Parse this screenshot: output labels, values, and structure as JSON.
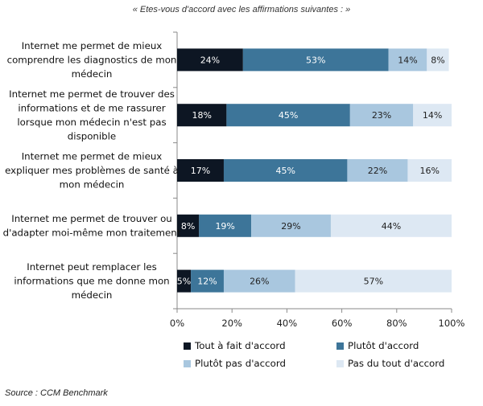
{
  "subtitle": "« Etes-vous d'accord avec les affirmations suivantes : »",
  "source": "Source : CCM Benchmark",
  "chart_data": {
    "type": "bar",
    "orientation": "horizontal",
    "stacked": true,
    "categories": [
      [
        "Internet me permet de mieux",
        "comprendre les diagnostics de mon",
        "médecin"
      ],
      [
        "Internet me permet de trouver des",
        "informations et de me rassurer",
        "lorsque mon médecin n'est pas",
        "disponible"
      ],
      [
        "Internet me permet de mieux",
        "expliquer mes problèmes de santé à",
        "mon médecin"
      ],
      [
        "Internet me permet de trouver ou",
        "d'adapter moi-même mon traitement"
      ],
      [
        "Internet peut remplacer les",
        "informations que me donne mon",
        "médecin"
      ]
    ],
    "series": [
      {
        "name": "Tout à fait d'accord",
        "color": "#0d1623",
        "label_color": "#ffffff",
        "values": [
          24,
          18,
          17,
          8,
          5
        ]
      },
      {
        "name": "Plutôt d'accord",
        "color": "#3d7599",
        "label_color": "#ffffff",
        "values": [
          53,
          45,
          45,
          19,
          12
        ]
      },
      {
        "name": "Plutôt pas d'accord",
        "color": "#a9c7df",
        "label_color": "#222222",
        "values": [
          14,
          23,
          22,
          29,
          26
        ]
      },
      {
        "name": "Pas du tout d'accord",
        "color": "#dde8f3",
        "label_color": "#222222",
        "values": [
          8,
          14,
          16,
          44,
          57
        ]
      }
    ],
    "data_labels": [
      [
        "24%",
        "53%",
        "14%",
        "8%"
      ],
      [
        "18%",
        "45%",
        "23%",
        "14%"
      ],
      [
        "17%",
        "45%",
        "22%",
        "16%"
      ],
      [
        "8%",
        "19%",
        "29%",
        "44%"
      ],
      [
        "5%",
        "12%",
        "26%",
        "57%"
      ]
    ],
    "xlim": [
      0,
      100
    ],
    "xticks": [
      "0%",
      "20%",
      "40%",
      "60%",
      "80%",
      "100%"
    ],
    "grid": false,
    "legend": "bottom"
  }
}
